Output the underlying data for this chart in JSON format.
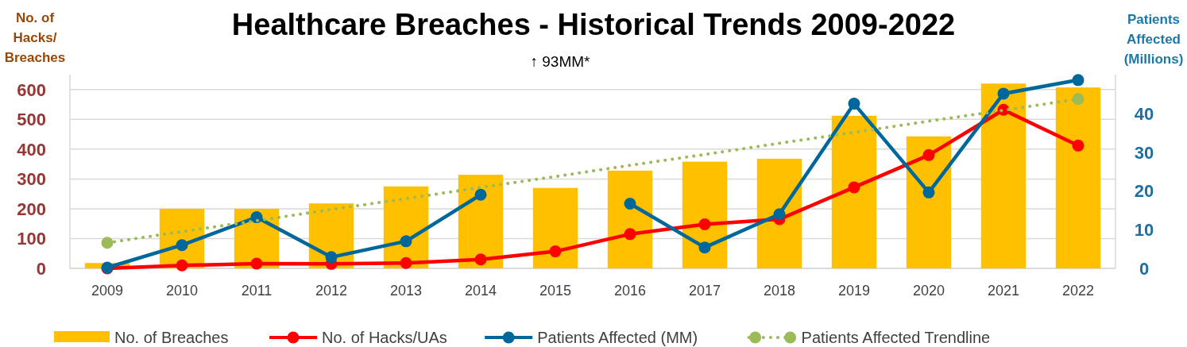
{
  "chart_data": {
    "type": "bar",
    "title": "Healthcare Breaches - Historical Trends 2009-2022",
    "ylabel": "No. of Hacks/ Breaches",
    "y2label": "Patients Affected (Millions)",
    "categories": [
      "2009",
      "2010",
      "2011",
      "2012",
      "2013",
      "2014",
      "2015",
      "2016",
      "2017",
      "2018",
      "2019",
      "2020",
      "2021",
      "2022"
    ],
    "series": [
      {
        "name": "No. of Breaches",
        "color": "#ffc000",
        "values": [
          18,
          200,
          200,
          218,
          275,
          314,
          270,
          328,
          358,
          368,
          512,
          443,
          620,
          607
        ]
      },
      {
        "name": "No. of Hacks/UAs",
        "type": "line",
        "color": "#ff0000",
        "marker": "circle",
        "values": [
          0,
          10,
          16,
          15,
          18,
          30,
          57,
          115,
          148,
          165,
          272,
          380,
          532,
          412
        ]
      },
      {
        "name": "Patients Affected (MM)",
        "type": "line",
        "axis": "y2",
        "color": "#00679a",
        "marker": "circle",
        "values": [
          0.2,
          6,
          13.2,
          2.9,
          7,
          19,
          null,
          16.7,
          5.4,
          14,
          42.5,
          19.6,
          45.1,
          48.6
        ]
      },
      {
        "name": "Patients Affected Trendline",
        "type": "line",
        "axis": "y2",
        "color": "#9bbb59",
        "line_style": "dotted",
        "values": [
          6.6,
          9.5,
          12.3,
          15.2,
          18.0,
          20.9,
          23.7,
          26.6,
          29.4,
          32.3,
          35.1,
          38.0,
          40.8,
          43.7
        ]
      }
    ],
    "annotations": [
      "↑ 93MM*"
    ],
    "ylim": [
      0,
      650
    ],
    "yticks": [
      0,
      100,
      200,
      300,
      400,
      500,
      600
    ],
    "y2lim": [
      0,
      50
    ],
    "y2ticks": [
      0,
      10,
      20,
      30,
      40
    ],
    "grid": "y",
    "legend": "bottom"
  }
}
